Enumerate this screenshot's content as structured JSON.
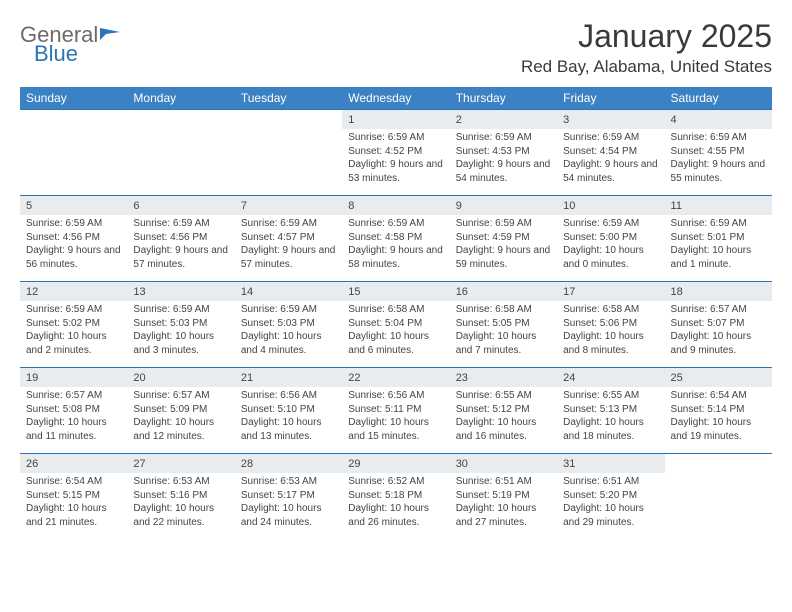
{
  "logo": {
    "word1": "General",
    "word2": "Blue",
    "flag_color": "#2b74b8"
  },
  "header": {
    "title": "January 2025",
    "location": "Red Bay, Alabama, United States"
  },
  "colors": {
    "header_bg": "#3b82c4",
    "header_text": "#ffffff",
    "daynum_bg": "#e9ecef",
    "week_border": "#2b74b8",
    "body_text": "#3a3a3a"
  },
  "day_names": [
    "Sunday",
    "Monday",
    "Tuesday",
    "Wednesday",
    "Thursday",
    "Friday",
    "Saturday"
  ],
  "weeks": [
    [
      null,
      null,
      null,
      {
        "n": "1",
        "sr": "6:59 AM",
        "ss": "4:52 PM",
        "dl": "9 hours and 53 minutes."
      },
      {
        "n": "2",
        "sr": "6:59 AM",
        "ss": "4:53 PM",
        "dl": "9 hours and 54 minutes."
      },
      {
        "n": "3",
        "sr": "6:59 AM",
        "ss": "4:54 PM",
        "dl": "9 hours and 54 minutes."
      },
      {
        "n": "4",
        "sr": "6:59 AM",
        "ss": "4:55 PM",
        "dl": "9 hours and 55 minutes."
      }
    ],
    [
      {
        "n": "5",
        "sr": "6:59 AM",
        "ss": "4:56 PM",
        "dl": "9 hours and 56 minutes."
      },
      {
        "n": "6",
        "sr": "6:59 AM",
        "ss": "4:56 PM",
        "dl": "9 hours and 57 minutes."
      },
      {
        "n": "7",
        "sr": "6:59 AM",
        "ss": "4:57 PM",
        "dl": "9 hours and 57 minutes."
      },
      {
        "n": "8",
        "sr": "6:59 AM",
        "ss": "4:58 PM",
        "dl": "9 hours and 58 minutes."
      },
      {
        "n": "9",
        "sr": "6:59 AM",
        "ss": "4:59 PM",
        "dl": "9 hours and 59 minutes."
      },
      {
        "n": "10",
        "sr": "6:59 AM",
        "ss": "5:00 PM",
        "dl": "10 hours and 0 minutes."
      },
      {
        "n": "11",
        "sr": "6:59 AM",
        "ss": "5:01 PM",
        "dl": "10 hours and 1 minute."
      }
    ],
    [
      {
        "n": "12",
        "sr": "6:59 AM",
        "ss": "5:02 PM",
        "dl": "10 hours and 2 minutes."
      },
      {
        "n": "13",
        "sr": "6:59 AM",
        "ss": "5:03 PM",
        "dl": "10 hours and 3 minutes."
      },
      {
        "n": "14",
        "sr": "6:59 AM",
        "ss": "5:03 PM",
        "dl": "10 hours and 4 minutes."
      },
      {
        "n": "15",
        "sr": "6:58 AM",
        "ss": "5:04 PM",
        "dl": "10 hours and 6 minutes."
      },
      {
        "n": "16",
        "sr": "6:58 AM",
        "ss": "5:05 PM",
        "dl": "10 hours and 7 minutes."
      },
      {
        "n": "17",
        "sr": "6:58 AM",
        "ss": "5:06 PM",
        "dl": "10 hours and 8 minutes."
      },
      {
        "n": "18",
        "sr": "6:57 AM",
        "ss": "5:07 PM",
        "dl": "10 hours and 9 minutes."
      }
    ],
    [
      {
        "n": "19",
        "sr": "6:57 AM",
        "ss": "5:08 PM",
        "dl": "10 hours and 11 minutes."
      },
      {
        "n": "20",
        "sr": "6:57 AM",
        "ss": "5:09 PM",
        "dl": "10 hours and 12 minutes."
      },
      {
        "n": "21",
        "sr": "6:56 AM",
        "ss": "5:10 PM",
        "dl": "10 hours and 13 minutes."
      },
      {
        "n": "22",
        "sr": "6:56 AM",
        "ss": "5:11 PM",
        "dl": "10 hours and 15 minutes."
      },
      {
        "n": "23",
        "sr": "6:55 AM",
        "ss": "5:12 PM",
        "dl": "10 hours and 16 minutes."
      },
      {
        "n": "24",
        "sr": "6:55 AM",
        "ss": "5:13 PM",
        "dl": "10 hours and 18 minutes."
      },
      {
        "n": "25",
        "sr": "6:54 AM",
        "ss": "5:14 PM",
        "dl": "10 hours and 19 minutes."
      }
    ],
    [
      {
        "n": "26",
        "sr": "6:54 AM",
        "ss": "5:15 PM",
        "dl": "10 hours and 21 minutes."
      },
      {
        "n": "27",
        "sr": "6:53 AM",
        "ss": "5:16 PM",
        "dl": "10 hours and 22 minutes."
      },
      {
        "n": "28",
        "sr": "6:53 AM",
        "ss": "5:17 PM",
        "dl": "10 hours and 24 minutes."
      },
      {
        "n": "29",
        "sr": "6:52 AM",
        "ss": "5:18 PM",
        "dl": "10 hours and 26 minutes."
      },
      {
        "n": "30",
        "sr": "6:51 AM",
        "ss": "5:19 PM",
        "dl": "10 hours and 27 minutes."
      },
      {
        "n": "31",
        "sr": "6:51 AM",
        "ss": "5:20 PM",
        "dl": "10 hours and 29 minutes."
      },
      null
    ]
  ],
  "labels": {
    "sunrise_prefix": "Sunrise: ",
    "sunset_prefix": "Sunset: ",
    "daylight_prefix": "Daylight: "
  }
}
